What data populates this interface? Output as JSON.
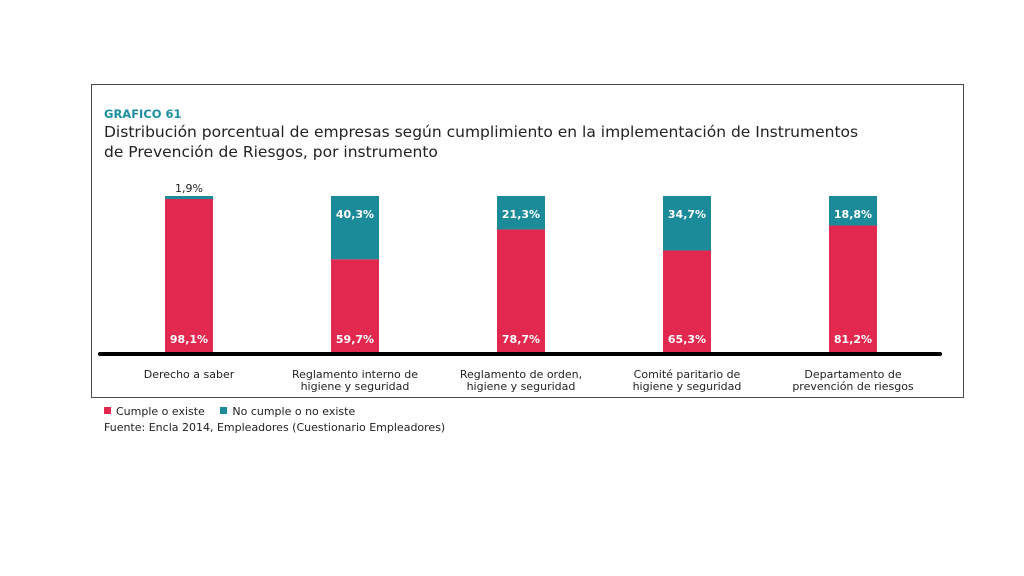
{
  "chart_label": "GRAFICO 61",
  "chart_title": "Distribución porcentual de empresas según cumplimiento en la implementación de Instrumentos de Prevención de Riesgos, por instrumento",
  "legend": {
    "items": [
      {
        "label": "Cumple o existe",
        "color": "#e3284f"
      },
      {
        "label": "No cumple o no existe",
        "color": "#1b8b99"
      }
    ]
  },
  "source": "Fuente: Encla 2014, Empleadores (Cuestionario Empleadores)",
  "chart_data": {
    "type": "bar",
    "stacked": true,
    "categories": [
      [
        "Derecho a saber"
      ],
      [
        "Reglamento interno de",
        "higiene y seguridad"
      ],
      [
        "Reglamento de orden,",
        "higiene y seguridad"
      ],
      [
        "Comité paritario de",
        "higiene y seguridad"
      ],
      [
        "Departamento de",
        "prevención de riesgos"
      ]
    ],
    "series": [
      {
        "name": "Cumple o existe",
        "color": "#e3284f",
        "values": [
          98.1,
          59.7,
          78.7,
          65.3,
          81.2
        ],
        "labels": [
          "98,1%",
          "59,7%",
          "78,7%",
          "65,3%",
          "81,2%"
        ]
      },
      {
        "name": "No cumple o no existe",
        "color": "#1b8b99",
        "values": [
          1.9,
          40.3,
          21.3,
          34.7,
          18.8
        ],
        "labels": [
          "1,9%",
          "40,3%",
          "21,3%",
          "34,7%",
          "18,8%"
        ]
      }
    ],
    "ylim": [
      0,
      100
    ],
    "grid": false,
    "legend_position": "bottom-left"
  }
}
